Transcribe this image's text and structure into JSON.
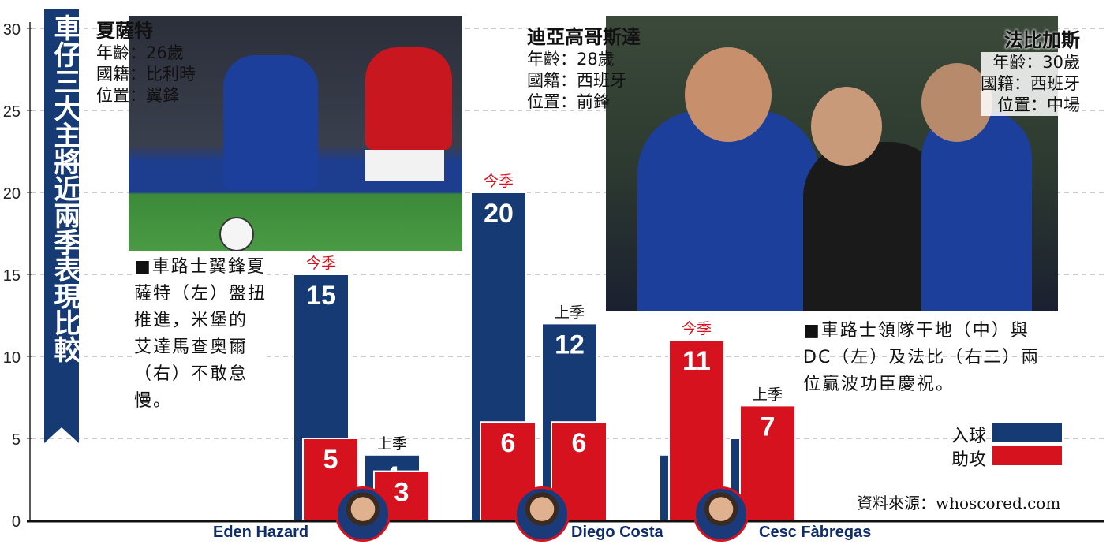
{
  "title": "車仔三大主將近兩季表現比較",
  "players": [
    {
      "name": "夏薩特",
      "age": "年齡：26歲",
      "nationality": "國籍：比利時",
      "position": "位置：翼鋒"
    },
    {
      "name": "迪亞高哥斯達",
      "age": "年齡：28歲",
      "nationality": "國籍：西班牙",
      "position": "位置：前鋒"
    },
    {
      "name": "法比加斯",
      "age": "年齡：30歲",
      "nationality": "國籍：西班牙",
      "position": "位置：中場"
    }
  ],
  "captions": {
    "left": [
      "■車路士翼鋒夏",
      "薩特（左）盤扭",
      "推進，米堡的",
      "艾達馬查奧爾",
      "（右）不敢怠",
      "慢。"
    ],
    "right": [
      "■車路士領隊干地（中）與",
      "DC（左）及法比（右二）兩",
      "位贏波功臣慶祝。"
    ]
  },
  "legend": {
    "goals": "入球",
    "assists": "助攻"
  },
  "source": "資料來源：whoscored.com",
  "colors": {
    "goals": "#163a73",
    "assists": "#d6121f",
    "banner": "#163a73"
  },
  "chart_data": {
    "type": "bar",
    "categories": [
      "Eden Hazard",
      "Diego Costa",
      "Cesc Fàbregas"
    ],
    "season_labels": {
      "current": "今季",
      "last": "上季"
    },
    "series": [
      {
        "name": "入球",
        "season": "今季",
        "values": [
          15,
          20,
          4
        ]
      },
      {
        "name": "助攻",
        "season": "今季",
        "values": [
          5,
          6,
          11
        ]
      },
      {
        "name": "入球",
        "season": "上季",
        "values": [
          4,
          12,
          5
        ]
      },
      {
        "name": "助攻",
        "season": "上季",
        "values": [
          3,
          6,
          7
        ]
      }
    ],
    "yticks": [
      0,
      5,
      10,
      15,
      20,
      25,
      30
    ],
    "ylim": [
      0,
      30
    ],
    "grid": true
  }
}
